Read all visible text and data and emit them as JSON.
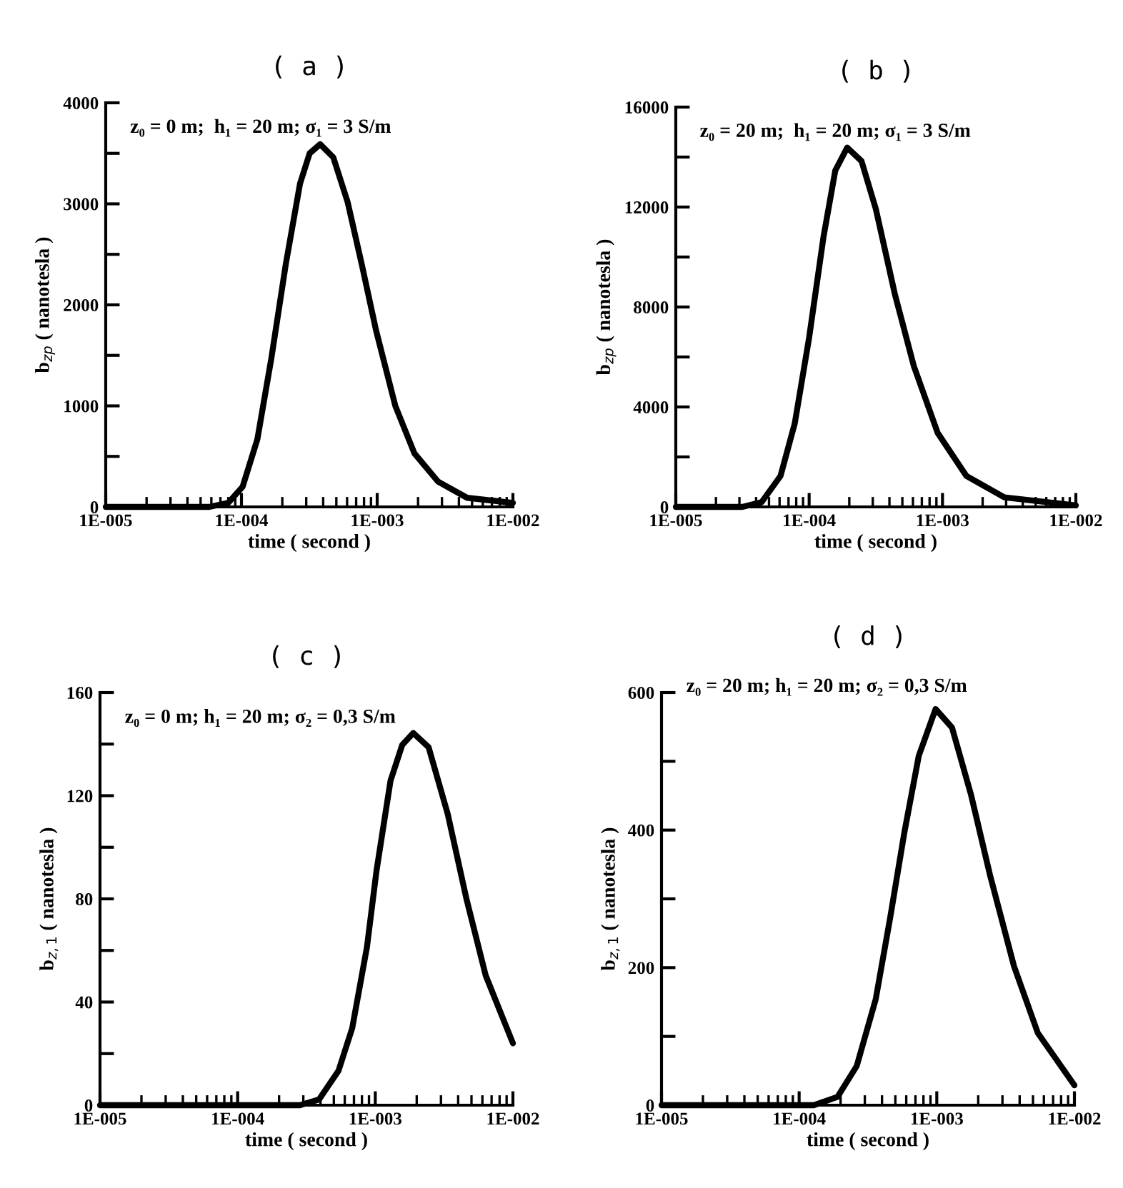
{
  "chart_data": [
    {
      "type": "line",
      "title": "( a )",
      "xlabel": "time ( second )",
      "ylabel": "b$_{zp}$ ( nanotesla )",
      "annotations": [
        "z₀ = 0 m;  h₁ = 20 m; σ₁ = 3 S/m"
      ],
      "log": "x",
      "grid": false,
      "marker": "none",
      "line_style": "solid",
      "xlim": [
        1e-05,
        0.01
      ],
      "xticks": [
        {
          "value": 1e-05,
          "label": "1E-005"
        },
        {
          "value": 0.0001,
          "label": "1E-004"
        },
        {
          "value": 0.001,
          "label": "1E-003"
        },
        {
          "value": 0.01,
          "label": "1E-002"
        }
      ],
      "ylim": [
        0,
        4000
      ],
      "yticks": [
        0,
        {
          "value": 500,
          "label": null
        },
        1000,
        {
          "value": 1500,
          "label": null
        },
        2000,
        {
          "value": 2500,
          "label": null
        },
        3000,
        {
          "value": 3500,
          "label": null
        },
        4000
      ],
      "series": [
        {
          "color": "#000000",
          "x": [
            1e-05,
            5.8e-05,
            8e-05,
            0.000102,
            0.000131,
            0.000166,
            0.000212,
            0.00027,
            0.000318,
            0.00038,
            0.000475,
            0.000605,
            0.00077,
            0.00098,
            0.00136,
            0.00188,
            0.00281,
            0.0046,
            0.01
          ],
          "values": [
            0,
            0,
            40,
            200,
            670,
            1470,
            2400,
            3200,
            3500,
            3590,
            3460,
            3020,
            2400,
            1750,
            1000,
            530,
            250,
            90,
            40
          ]
        }
      ]
    },
    {
      "type": "line",
      "title": "( b )",
      "xlabel": "time ( second )",
      "ylabel": "b$_{zp}$ ( nanotesla )",
      "annotations": [
        "z₀ = 20 m;  h₁ = 20 m; σ₁ = 3 S/m"
      ],
      "log": "x",
      "grid": false,
      "marker": "none",
      "line_style": "solid",
      "xlim": [
        1e-05,
        0.01
      ],
      "xticks": [
        {
          "value": 1e-05,
          "label": "1E-005"
        },
        {
          "value": 0.0001,
          "label": "1E-004"
        },
        {
          "value": 0.001,
          "label": "1E-003"
        },
        {
          "value": 0.01,
          "label": "1E-002"
        }
      ],
      "ylim": [
        0,
        16000
      ],
      "yticks": [
        0,
        {
          "value": 2000,
          "label": null
        },
        4000,
        {
          "value": 6000,
          "label": null
        },
        8000,
        {
          "value": 10000,
          "label": null
        },
        12000,
        {
          "value": 14000,
          "label": null
        },
        16000
      ],
      "series": [
        {
          "color": "#000000",
          "x": [
            1e-05,
            3.16e-05,
            4.4e-05,
            6.1e-05,
            7.8e-05,
            0.0001,
            0.000128,
            0.000157,
            0.000193,
            0.000247,
            0.000316,
            0.00044,
            0.00061,
            0.00092,
            0.00151,
            0.00291,
            0.01
          ],
          "values": [
            0,
            0,
            190,
            1240,
            3340,
            6780,
            10790,
            13460,
            14380,
            13840,
            11930,
            8500,
            5630,
            2960,
            1240,
            380,
            60
          ]
        }
      ]
    },
    {
      "type": "line",
      "title": "( c )",
      "xlabel": "time ( second )",
      "ylabel": "b$_{z,1}$ ( nanotesla )",
      "annotations": [
        "z₀ = 0 m; h₁ = 20 m; σ₂ = 0,3 S/m"
      ],
      "log": "x",
      "grid": false,
      "marker": "none",
      "line_style": "solid",
      "xlim": [
        1e-05,
        0.01
      ],
      "xticks": [
        {
          "value": 1e-05,
          "label": "1E-005"
        },
        {
          "value": 0.0001,
          "label": "1E-004"
        },
        {
          "value": 0.001,
          "label": "1E-003"
        },
        {
          "value": 0.01,
          "label": "1E-002"
        }
      ],
      "ylim": [
        0,
        160
      ],
      "yticks": [
        0,
        {
          "value": 20,
          "label": null
        },
        40,
        {
          "value": 60,
          "label": null
        },
        80,
        {
          "value": 100,
          "label": null
        },
        120,
        {
          "value": 140,
          "label": null
        },
        160
      ],
      "series": [
        {
          "color": "#000000",
          "x": [
            1e-05,
            0.000284,
            0.00039,
            0.00054,
            0.00068,
            0.00087,
            0.00102,
            0.00129,
            0.00157,
            0.00189,
            0.00244,
            0.00336,
            0.00461,
            0.00635,
            0.01
          ],
          "values": [
            0,
            0,
            2.2,
            13.3,
            29.9,
            61.3,
            90.8,
            125.8,
            139.7,
            144.3,
            138.8,
            112.9,
            79.7,
            50.2,
            24
          ]
        }
      ]
    },
    {
      "type": "line",
      "title": "( d )",
      "xlabel": "time ( second )",
      "ylabel": "b$_{z,1}$ ( nanotesla )",
      "annotations": [
        "z₀ = 20 m; h₁ = 20 m; σ₂ = 0,3 S/m"
      ],
      "log": "x",
      "grid": false,
      "marker": "none",
      "line_style": "solid",
      "xlim": [
        1e-05,
        0.01
      ],
      "xticks": [
        {
          "value": 1e-05,
          "label": "1E-005"
        },
        {
          "value": 0.0001,
          "label": "1E-004"
        },
        {
          "value": 0.001,
          "label": "1E-003"
        },
        {
          "value": 0.01,
          "label": "1E-002"
        }
      ],
      "ylim": [
        0,
        600
      ],
      "yticks": [
        0,
        {
          "value": 100,
          "label": null
        },
        200,
        {
          "value": 300,
          "label": null
        },
        400,
        {
          "value": 500,
          "label": null
        },
        600
      ],
      "series": [
        {
          "color": "#000000",
          "x": [
            1e-05,
            0.000128,
            0.00019,
            0.000262,
            0.00036,
            0.000458,
            0.000582,
            0.00074,
            0.00098,
            0.00129,
            0.00177,
            0.00244,
            0.00364,
            0.00542,
            0.01
          ],
          "values": [
            0,
            0,
            12,
            57,
            154,
            272,
            397,
            508,
            576,
            549,
            452,
            334,
            202,
            105,
            29
          ]
        }
      ]
    }
  ]
}
